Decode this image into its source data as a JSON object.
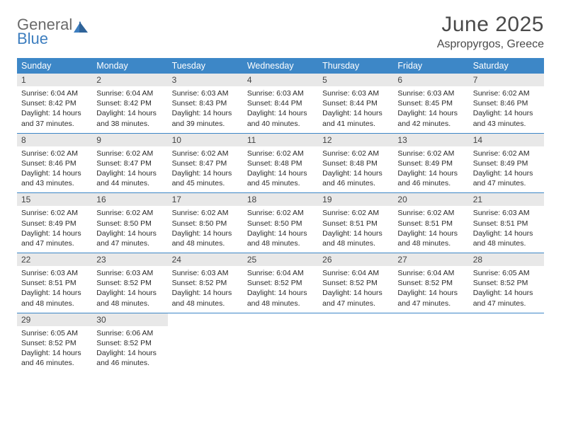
{
  "logo": {
    "line1": "General",
    "line2": "Blue"
  },
  "title": "June 2025",
  "subtitle": "Aspropyrgos, Greece",
  "colors": {
    "header_bg": "#3d87c7",
    "header_fg": "#ffffff",
    "daynum_bg": "#e8e8e8",
    "week_border": "#3d87c7",
    "title_color": "#4a4a4a",
    "text_color": "#2b2b2b"
  },
  "daysOfWeek": [
    "Sunday",
    "Monday",
    "Tuesday",
    "Wednesday",
    "Thursday",
    "Friday",
    "Saturday"
  ],
  "weeks": [
    [
      {
        "n": "1",
        "sr": "Sunrise: 6:04 AM",
        "ss": "Sunset: 8:42 PM",
        "d1": "Daylight: 14 hours",
        "d2": "and 37 minutes."
      },
      {
        "n": "2",
        "sr": "Sunrise: 6:04 AM",
        "ss": "Sunset: 8:42 PM",
        "d1": "Daylight: 14 hours",
        "d2": "and 38 minutes."
      },
      {
        "n": "3",
        "sr": "Sunrise: 6:03 AM",
        "ss": "Sunset: 8:43 PM",
        "d1": "Daylight: 14 hours",
        "d2": "and 39 minutes."
      },
      {
        "n": "4",
        "sr": "Sunrise: 6:03 AM",
        "ss": "Sunset: 8:44 PM",
        "d1": "Daylight: 14 hours",
        "d2": "and 40 minutes."
      },
      {
        "n": "5",
        "sr": "Sunrise: 6:03 AM",
        "ss": "Sunset: 8:44 PM",
        "d1": "Daylight: 14 hours",
        "d2": "and 41 minutes."
      },
      {
        "n": "6",
        "sr": "Sunrise: 6:03 AM",
        "ss": "Sunset: 8:45 PM",
        "d1": "Daylight: 14 hours",
        "d2": "and 42 minutes."
      },
      {
        "n": "7",
        "sr": "Sunrise: 6:02 AM",
        "ss": "Sunset: 8:46 PM",
        "d1": "Daylight: 14 hours",
        "d2": "and 43 minutes."
      }
    ],
    [
      {
        "n": "8",
        "sr": "Sunrise: 6:02 AM",
        "ss": "Sunset: 8:46 PM",
        "d1": "Daylight: 14 hours",
        "d2": "and 43 minutes."
      },
      {
        "n": "9",
        "sr": "Sunrise: 6:02 AM",
        "ss": "Sunset: 8:47 PM",
        "d1": "Daylight: 14 hours",
        "d2": "and 44 minutes."
      },
      {
        "n": "10",
        "sr": "Sunrise: 6:02 AM",
        "ss": "Sunset: 8:47 PM",
        "d1": "Daylight: 14 hours",
        "d2": "and 45 minutes."
      },
      {
        "n": "11",
        "sr": "Sunrise: 6:02 AM",
        "ss": "Sunset: 8:48 PM",
        "d1": "Daylight: 14 hours",
        "d2": "and 45 minutes."
      },
      {
        "n": "12",
        "sr": "Sunrise: 6:02 AM",
        "ss": "Sunset: 8:48 PM",
        "d1": "Daylight: 14 hours",
        "d2": "and 46 minutes."
      },
      {
        "n": "13",
        "sr": "Sunrise: 6:02 AM",
        "ss": "Sunset: 8:49 PM",
        "d1": "Daylight: 14 hours",
        "d2": "and 46 minutes."
      },
      {
        "n": "14",
        "sr": "Sunrise: 6:02 AM",
        "ss": "Sunset: 8:49 PM",
        "d1": "Daylight: 14 hours",
        "d2": "and 47 minutes."
      }
    ],
    [
      {
        "n": "15",
        "sr": "Sunrise: 6:02 AM",
        "ss": "Sunset: 8:49 PM",
        "d1": "Daylight: 14 hours",
        "d2": "and 47 minutes."
      },
      {
        "n": "16",
        "sr": "Sunrise: 6:02 AM",
        "ss": "Sunset: 8:50 PM",
        "d1": "Daylight: 14 hours",
        "d2": "and 47 minutes."
      },
      {
        "n": "17",
        "sr": "Sunrise: 6:02 AM",
        "ss": "Sunset: 8:50 PM",
        "d1": "Daylight: 14 hours",
        "d2": "and 48 minutes."
      },
      {
        "n": "18",
        "sr": "Sunrise: 6:02 AM",
        "ss": "Sunset: 8:50 PM",
        "d1": "Daylight: 14 hours",
        "d2": "and 48 minutes."
      },
      {
        "n": "19",
        "sr": "Sunrise: 6:02 AM",
        "ss": "Sunset: 8:51 PM",
        "d1": "Daylight: 14 hours",
        "d2": "and 48 minutes."
      },
      {
        "n": "20",
        "sr": "Sunrise: 6:02 AM",
        "ss": "Sunset: 8:51 PM",
        "d1": "Daylight: 14 hours",
        "d2": "and 48 minutes."
      },
      {
        "n": "21",
        "sr": "Sunrise: 6:03 AM",
        "ss": "Sunset: 8:51 PM",
        "d1": "Daylight: 14 hours",
        "d2": "and 48 minutes."
      }
    ],
    [
      {
        "n": "22",
        "sr": "Sunrise: 6:03 AM",
        "ss": "Sunset: 8:51 PM",
        "d1": "Daylight: 14 hours",
        "d2": "and 48 minutes."
      },
      {
        "n": "23",
        "sr": "Sunrise: 6:03 AM",
        "ss": "Sunset: 8:52 PM",
        "d1": "Daylight: 14 hours",
        "d2": "and 48 minutes."
      },
      {
        "n": "24",
        "sr": "Sunrise: 6:03 AM",
        "ss": "Sunset: 8:52 PM",
        "d1": "Daylight: 14 hours",
        "d2": "and 48 minutes."
      },
      {
        "n": "25",
        "sr": "Sunrise: 6:04 AM",
        "ss": "Sunset: 8:52 PM",
        "d1": "Daylight: 14 hours",
        "d2": "and 48 minutes."
      },
      {
        "n": "26",
        "sr": "Sunrise: 6:04 AM",
        "ss": "Sunset: 8:52 PM",
        "d1": "Daylight: 14 hours",
        "d2": "and 47 minutes."
      },
      {
        "n": "27",
        "sr": "Sunrise: 6:04 AM",
        "ss": "Sunset: 8:52 PM",
        "d1": "Daylight: 14 hours",
        "d2": "and 47 minutes."
      },
      {
        "n": "28",
        "sr": "Sunrise: 6:05 AM",
        "ss": "Sunset: 8:52 PM",
        "d1": "Daylight: 14 hours",
        "d2": "and 47 minutes."
      }
    ],
    [
      {
        "n": "29",
        "sr": "Sunrise: 6:05 AM",
        "ss": "Sunset: 8:52 PM",
        "d1": "Daylight: 14 hours",
        "d2": "and 46 minutes."
      },
      {
        "n": "30",
        "sr": "Sunrise: 6:06 AM",
        "ss": "Sunset: 8:52 PM",
        "d1": "Daylight: 14 hours",
        "d2": "and 46 minutes."
      },
      {
        "empty": true
      },
      {
        "empty": true
      },
      {
        "empty": true
      },
      {
        "empty": true
      },
      {
        "empty": true
      }
    ]
  ]
}
